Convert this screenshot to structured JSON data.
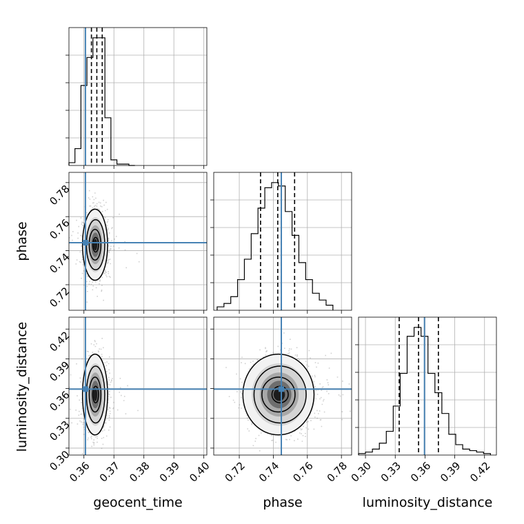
{
  "truth_color": "#4682b4",
  "chart_data": [
    {
      "type": "histogram",
      "param": "geocent_time",
      "xlabel": "geocent_time",
      "xlim": [
        0.355,
        0.401
      ],
      "grid": true,
      "bin_edges": [
        0.355,
        0.357,
        0.359,
        0.361,
        0.363,
        0.365,
        0.367,
        0.369,
        0.371,
        0.373,
        0.375,
        0.377
      ],
      "counts": [
        2,
        12,
        57,
        77,
        91,
        91,
        34,
        4,
        1,
        1,
        0
      ],
      "quantiles": [
        0.3625,
        0.3643,
        0.3661
      ],
      "truth": 0.3605
    },
    {
      "type": "scatter-contour",
      "x_param": "geocent_time",
      "y_param": "phase",
      "ylabel": "phase",
      "xlim": [
        0.355,
        0.401
      ],
      "ylim": [
        0.705,
        0.786
      ],
      "y_ticks": [
        0.72,
        0.74,
        0.76,
        0.78
      ],
      "center": [
        0.3638,
        0.7435
      ],
      "spread": [
        0.0019,
        0.0095
      ],
      "truth": [
        0.3605,
        0.7447
      ]
    },
    {
      "type": "histogram",
      "param": "phase",
      "xlim": [
        0.705,
        0.786
      ],
      "grid": true,
      "bin_edges": [
        0.707,
        0.711,
        0.715,
        0.719,
        0.723,
        0.727,
        0.731,
        0.735,
        0.739,
        0.743,
        0.747,
        0.751,
        0.755,
        0.759,
        0.763,
        0.767,
        0.771,
        0.775
      ],
      "counts": [
        2,
        4,
        8,
        18,
        30,
        45,
        60,
        72,
        75,
        73,
        58,
        44,
        28,
        18,
        10,
        6,
        3
      ],
      "quantiles": [
        0.7325,
        0.7426,
        0.7525
      ],
      "truth": 0.7447
    },
    {
      "type": "scatter-contour",
      "x_param": "geocent_time",
      "y_param": "luminosity_distance",
      "ylabel": "luminosity_distance",
      "xlabel": "geocent_time",
      "xlim": [
        0.355,
        0.401
      ],
      "ylim": [
        0.293,
        0.432
      ],
      "x_ticks": [
        0.36,
        0.37,
        0.38,
        0.39,
        0.4
      ],
      "y_ticks": [
        0.3,
        0.33,
        0.36,
        0.39,
        0.42
      ],
      "center": [
        0.3638,
        0.354
      ],
      "spread": [
        0.0019,
        0.0185
      ],
      "truth": [
        0.3605,
        0.3595
      ]
    },
    {
      "type": "scatter-contour",
      "x_param": "phase",
      "y_param": "luminosity_distance",
      "xlabel": "phase",
      "xlim": [
        0.705,
        0.786
      ],
      "ylim": [
        0.293,
        0.432
      ],
      "x_ticks": [
        0.72,
        0.74,
        0.76,
        0.78
      ],
      "center": [
        0.7435,
        0.354
      ],
      "spread": [
        0.0095,
        0.0185
      ],
      "truth": [
        0.7447,
        0.3595
      ]
    },
    {
      "type": "histogram",
      "param": "luminosity_distance",
      "xlabel": "luminosity_distance",
      "xlim": [
        0.293,
        0.432
      ],
      "grid": true,
      "x_ticks": [
        0.3,
        0.33,
        0.36,
        0.39,
        0.42
      ],
      "bin_edges": [
        0.293,
        0.3,
        0.307,
        0.314,
        0.321,
        0.328,
        0.335,
        0.342,
        0.349,
        0.356,
        0.363,
        0.37,
        0.377,
        0.384,
        0.391,
        0.398,
        0.405,
        0.412,
        0.419,
        0.426
      ],
      "counts": [
        1,
        2,
        4,
        8,
        16,
        33,
        55,
        80,
        86,
        80,
        55,
        42,
        28,
        14,
        7,
        4,
        3,
        2,
        1
      ],
      "quantiles": [
        0.334,
        0.3535,
        0.3735
      ],
      "truth": 0.3595
    }
  ]
}
